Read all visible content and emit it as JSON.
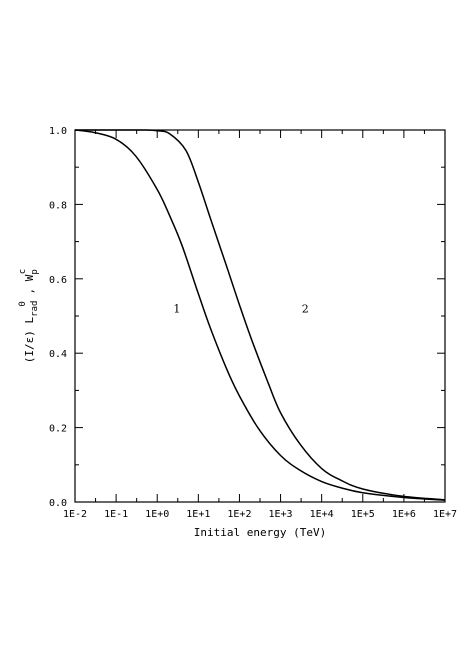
{
  "chart_data": {
    "type": "line",
    "xlabel": "Initial energy (TeV)",
    "ylabel_parts": {
      "prefix": "(I/ε) L",
      "sub1": "rad",
      "sup1": "0",
      "sep": " , W",
      "sub2": "p",
      "sup2": "c"
    },
    "x_scale": "log",
    "x_ticks": [
      "1E-2",
      "1E-1",
      "1E+0",
      "1E+1",
      "1E+2",
      "1E+3",
      "1E+4",
      "1E+5",
      "1E+6",
      "1E+7"
    ],
    "x_tick_values": [
      0.01,
      0.1,
      1,
      10,
      100,
      1000,
      10000,
      100000,
      1000000,
      10000000
    ],
    "xlim": [
      0.01,
      10000000
    ],
    "y_ticks": [
      "0.0",
      "0.2",
      "0.4",
      "0.6",
      "0.8",
      "1.0"
    ],
    "y_tick_values": [
      0.0,
      0.2,
      0.4,
      0.6,
      0.8,
      1.0
    ],
    "ylim": [
      0.0,
      1.0
    ],
    "grid": false,
    "series": [
      {
        "label": "1",
        "label_at": {
          "x": 3.0,
          "y": 0.52
        },
        "x": [
          0.01,
          0.03,
          0.1,
          0.3,
          1,
          2,
          4,
          10,
          20,
          50,
          100,
          300,
          1000,
          3000,
          10000,
          30000,
          100000,
          1000000,
          10000000
        ],
        "y": [
          1.0,
          0.993,
          0.975,
          0.93,
          0.84,
          0.77,
          0.69,
          0.56,
          0.465,
          0.355,
          0.285,
          0.195,
          0.125,
          0.085,
          0.055,
          0.038,
          0.025,
          0.012,
          0.005
        ]
      },
      {
        "label": "2",
        "label_at": {
          "x": 4000,
          "y": 0.52
        },
        "x": [
          0.01,
          0.1,
          0.5,
          1,
          2,
          5,
          10,
          20,
          50,
          100,
          200,
          500,
          1000,
          3000,
          10000,
          30000,
          100000,
          1000000,
          10000000
        ],
        "y": [
          1.0,
          1.0,
          1.0,
          0.998,
          0.99,
          0.945,
          0.86,
          0.76,
          0.63,
          0.53,
          0.435,
          0.32,
          0.24,
          0.155,
          0.09,
          0.058,
          0.035,
          0.015,
          0.006
        ]
      }
    ]
  }
}
